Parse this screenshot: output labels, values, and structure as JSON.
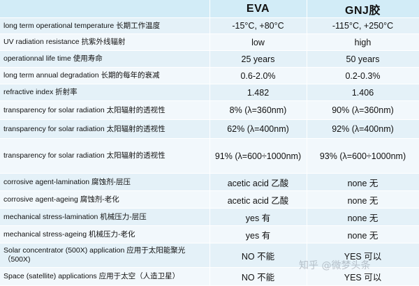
{
  "header": {
    "col1": "",
    "col2": "EVA",
    "col3": "GNJ胶"
  },
  "rows": [
    {
      "label": "long term operational temperature 长期工作温度",
      "eva": "-15°C, +80°C",
      "gnj": "-115°C, +250°C"
    },
    {
      "label": "UV radiation resistance 抗紫外线辐射",
      "eva": "low",
      "gnj": "high"
    },
    {
      "label": "operationnal life time 使用寿命",
      "eva": "25 years",
      "gnj": "50 years"
    },
    {
      "label": "long term annual degradation 长期的每年的衰减",
      "eva": "0.6-2.0%",
      "gnj": "0.2-0.3%"
    },
    {
      "label": "refractive index 折射率",
      "eva": "1.482",
      "gnj": "1.406"
    },
    {
      "label": "transparency for solar radiation 太阳辐射的透视性",
      "eva": "8% (λ=360nm)",
      "gnj": "90% (λ=360nm)"
    },
    {
      "label": "transparency for solar radiation 太阳辐射的透视性",
      "eva": "62% (λ=400nm)",
      "gnj": "92% (λ=400nm)"
    },
    {
      "label": "transparency for solar radiation 太阳辐射的透视性",
      "eva": "91% (λ=600÷1000nm)",
      "gnj": "93% (λ=600÷1000nm)"
    },
    {
      "label": "corrosive agent-lamination 腐蚀剂-层压",
      "eva": "acetic acid 乙酸",
      "gnj": "none 无"
    },
    {
      "label": "corrosive agent-ageing 腐蚀剂-老化",
      "eva": "acetic acid 乙酸",
      "gnj": "none 无"
    },
    {
      "label": "mechanical stress-lamination 机械压力-层压",
      "eva": "yes 有",
      "gnj": "none 无"
    },
    {
      "label": "mechanical stress-ageing 机械压力-老化",
      "eva": "yes 有",
      "gnj": "none 无"
    },
    {
      "label": "Solar concentrator (500X) application 应用于太阳能聚光（500X)",
      "eva": "NO 不能",
      "gnj": "YES 可以"
    },
    {
      "label": "Space (satellite) applications 应用于太空（人造卫星）",
      "eva": "NO 不能",
      "gnj": "YES 可以"
    }
  ],
  "watermark": "知乎 @微梦头条"
}
